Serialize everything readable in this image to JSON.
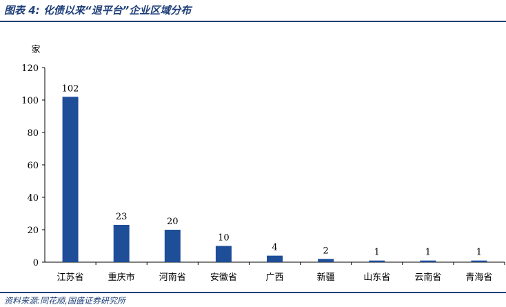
{
  "header": {
    "title": "图表 4:  化债以来“退平台”企业区域分布"
  },
  "footer": {
    "source": "资料来源:同花顺,国盛证券研究所"
  },
  "chart_data": {
    "type": "bar",
    "categories": [
      "江苏省",
      "重庆市",
      "河南省",
      "安徽省",
      "广西",
      "新疆",
      "山东省",
      "云南省",
      "青海省"
    ],
    "values": [
      102,
      23,
      20,
      10,
      4,
      2,
      1,
      1,
      1
    ],
    "data_labels": [
      "102",
      "23",
      "20",
      "10",
      "4",
      "2",
      "1",
      "1",
      "1"
    ],
    "ylabel": "家",
    "xlabel": "",
    "ylim": [
      0,
      120
    ],
    "yticks": [
      0,
      20,
      40,
      60,
      80,
      100,
      120
    ],
    "grid": false,
    "legend": "none",
    "bar_color": "#1f4e99"
  }
}
